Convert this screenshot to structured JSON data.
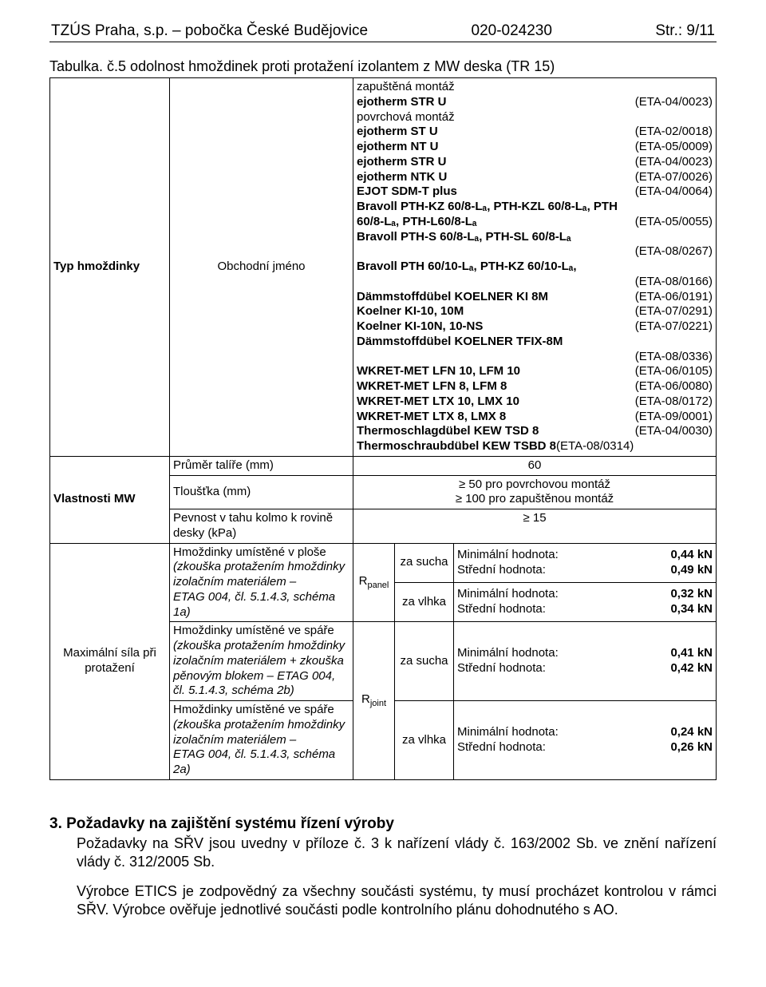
{
  "header": {
    "left": "TZÚS Praha, s.p. – pobočka České Budějovice",
    "center": "020-024230",
    "right": "Str.: 9/11"
  },
  "caption": "Tabulka. č.5 odolnost hmoždinek proti protažení izolantem z MW deska (TR 15)",
  "row_labels": {
    "typ": "Typ hmoždinky",
    "obchodni": "Obchodní jméno",
    "vlastnosti": "Vlastnosti MW",
    "prumer": "Průměr talíře (mm)",
    "tloustka": "Tloušťka (mm)",
    "pevnost": "Pevnost v tahu kolmo k rovině desky (kPa)",
    "max_sila": "Maximální síla při protažení"
  },
  "products_pre": {
    "zapustena": "zapuštěná montáž",
    "povrchova": "povrchová montáž"
  },
  "products": [
    {
      "name": "ejotherm STR U",
      "eta": "(ETA-04/0023)"
    },
    {
      "name_plain": "povrchová montáž"
    },
    {
      "name": "ejotherm ST U",
      "eta": "(ETA-02/0018)"
    },
    {
      "name": "ejotherm NT U",
      "eta": "(ETA-05/0009)"
    },
    {
      "name": "ejotherm STR U",
      "eta": "(ETA-04/0023)"
    },
    {
      "name": "ejotherm NTK U",
      "eta": "(ETA-07/0026)"
    },
    {
      "name": "EJOT SDM-T plus",
      "eta": "(ETA-04/0064)"
    },
    {
      "name": "Bravoll PTH-KZ 60/8-Lₐ, PTH-KZL 60/8-Lₐ, PTH"
    },
    {
      "name": "60/8-Lₐ, PTH-L60/8-Lₐ",
      "eta": "(ETA-05/0055)"
    },
    {
      "name": "Bravoll PTH-S 60/8-Lₐ, PTH-SL 60/8-Lₐ"
    },
    {
      "eta_only": "(ETA-08/0267)"
    },
    {
      "name": "Bravoll PTH 60/10-Lₐ, PTH-KZ 60/10-Lₐ,"
    },
    {
      "eta_only": "(ETA-08/0166)"
    },
    {
      "name": "Dämmstoffdübel KOELNER KI 8M",
      "eta": "(ETA-06/0191)"
    },
    {
      "name": "Koelner KI-10, 10M",
      "eta": "(ETA-07/0291)"
    },
    {
      "name": "Koelner KI-10N, 10-NS",
      "eta": "(ETA-07/0221)"
    },
    {
      "name": "Dämmstoffdübel KOELNER TFIX-8M"
    },
    {
      "eta_only": "(ETA-08/0336)"
    },
    {
      "name": "WKRET-MET LFN 10, LFM 10",
      "eta": "(ETA-06/0105)"
    },
    {
      "name": "WKRET-MET LFN 8, LFM 8",
      "eta": "(ETA-06/0080)"
    },
    {
      "name": "WKRET-MET LTX 10, LMX 10",
      "eta": "(ETA-08/0172)"
    },
    {
      "name": "WKRET-MET LTX 8, LMX 8",
      "eta": "(ETA-09/0001)"
    },
    {
      "name": "Thermoschlagdübel KEW TSD 8",
      "eta": "(ETA-04/0030)"
    },
    {
      "name": "Thermoschraubdübel KEW TSBD 8",
      "eta": "(ETA-08/0314)",
      "tight": true
    }
  ],
  "values": {
    "prumer": "60",
    "tloustka": "≥ 50 pro povrchovou montáž\n≥ 100 pro zapuštěnou montáž",
    "pevnost": "≥ 15",
    "rpanel": "Rpanel",
    "rjoint": "Rjoint",
    "za_sucha": "za sucha",
    "za_vlhka": "za vlhka"
  },
  "tests": {
    "plose_head": "Hmoždinky umístěné v ploše",
    "plose_body": "(zkouška protažením hmoždinky izolačním materiálem –\nETAG 004, čl. 5.1.4.3, schéma 1a)",
    "spare1_head": "Hmoždinky umístěné ve spáře",
    "spare1_body": "(zkouška protažením hmoždinky izolačním materiálem + zkouška pěnovým blokem – ETAG 004, čl. 5.1.4.3, schéma 2b)",
    "spare2_head": "Hmoždinky umístěné ve spáře",
    "spare2_body": "(zkouška protažením hmoždinky izolačním materiálem –\nETAG 004, čl. 5.1.4.3, schéma 2a)"
  },
  "result_lines": {
    "r1a": "Minimální hodnota:",
    "r1av": "0,44 kN",
    "r1b": "Střední hodnota:",
    "r1bv": "0,49 kN",
    "r2a": "Minimální hodnota:",
    "r2av": "0,32 kN",
    "r2b": "Střední hodnota:",
    "r2bv": "0,34 kN",
    "r3a": "Minimální hodnota:",
    "r3av": "0,41 kN",
    "r3b": "Střední hodnota:",
    "r3bv": "0,42 kN",
    "r4a": "Minimální hodnota:",
    "r4av": "0,24 kN",
    "r4b": "Střední hodnota:",
    "r4bv": "0,26 kN"
  },
  "section3": {
    "heading": "3.    Požadavky na zajištění systému řízení výroby",
    "p1": "Požadavky na SŘV jsou uvedny v příloze č. 3 k nařízení vlády č. 163/2002 Sb. ve znění nařízení vlády č. 312/2005 Sb.",
    "p2": "Výrobce ETICS je zodpovědný za všechny součásti systému, ty musí procházet kontrolou v rámci SŘV. Výrobce ověřuje jednotlivé součásti podle kontrolního plánu dohodnutého s AO."
  }
}
